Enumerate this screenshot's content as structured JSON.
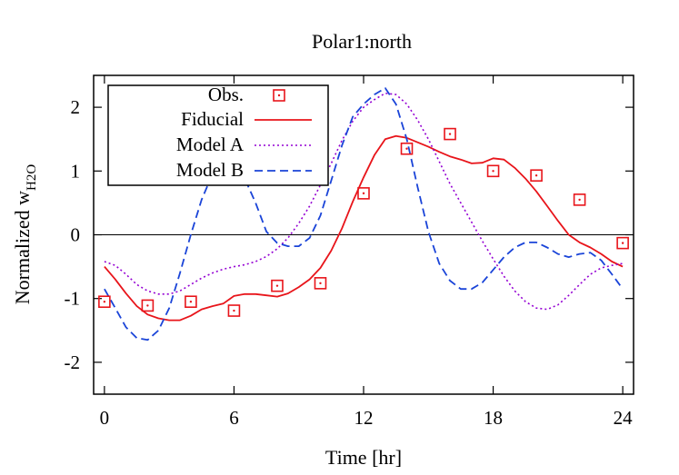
{
  "chart_data": {
    "type": "line",
    "title": "Polar1:north",
    "xlabel": "Time [hr]",
    "ylabel_main": "Normalized w",
    "ylabel_sub": "H2O",
    "xlim": [
      -0.5,
      24.5
    ],
    "ylim": [
      -2.5,
      2.5
    ],
    "xticks": [
      0,
      6,
      12,
      18,
      24
    ],
    "xtick_labels": [
      "0",
      "6",
      "12",
      "18",
      "24"
    ],
    "yticks": [
      -2,
      -1,
      0,
      1,
      2
    ],
    "ytick_labels": [
      "-2",
      "-1",
      "0",
      "1",
      "2"
    ],
    "zero_line": true,
    "grid": false,
    "legend_position": "top-left",
    "series": [
      {
        "name": "Obs.",
        "kind": "points",
        "marker": "boxed-dot",
        "color": "#e8141a",
        "x": [
          0,
          2,
          4,
          6,
          8,
          10,
          12,
          14,
          16,
          18,
          20,
          22,
          24
        ],
        "y": [
          -1.05,
          -1.11,
          -1.05,
          -1.19,
          -0.8,
          -0.76,
          0.65,
          1.35,
          1.58,
          1.0,
          0.93,
          0.55,
          -0.13
        ]
      },
      {
        "name": "Fiducial",
        "kind": "line",
        "dash": "solid",
        "color": "#e8141a",
        "x": [
          0,
          0.5,
          1,
          1.5,
          2,
          2.5,
          3,
          3.5,
          4,
          4.5,
          5,
          5.5,
          6,
          6.5,
          7,
          7.5,
          8,
          8.5,
          9,
          9.5,
          10,
          10.5,
          11,
          11.5,
          12,
          12.5,
          13,
          13.5,
          14,
          14.5,
          15,
          15.5,
          16,
          16.5,
          17,
          17.5,
          18,
          18.5,
          19,
          19.5,
          20,
          20.5,
          21,
          21.5,
          22,
          22.5,
          23,
          23.5,
          24
        ],
        "y": [
          -0.5,
          -0.7,
          -0.92,
          -1.12,
          -1.25,
          -1.31,
          -1.34,
          -1.34,
          -1.27,
          -1.17,
          -1.12,
          -1.08,
          -0.96,
          -0.93,
          -0.93,
          -0.95,
          -0.97,
          -0.92,
          -0.82,
          -0.7,
          -0.52,
          -0.25,
          0.1,
          0.52,
          0.9,
          1.25,
          1.5,
          1.55,
          1.52,
          1.45,
          1.38,
          1.3,
          1.23,
          1.18,
          1.12,
          1.13,
          1.2,
          1.18,
          1.05,
          0.88,
          0.68,
          0.45,
          0.22,
          0.0,
          -0.12,
          -0.2,
          -0.3,
          -0.42,
          -0.5
        ]
      },
      {
        "name": "Model A",
        "kind": "line",
        "dash": "dotted",
        "color": "#9400d3",
        "x": [
          0,
          0.5,
          1,
          1.5,
          2,
          2.5,
          3,
          3.5,
          4,
          4.5,
          5,
          5.5,
          6,
          6.5,
          7,
          7.5,
          8,
          8.5,
          9,
          9.5,
          10,
          10.5,
          11,
          11.5,
          12,
          12.5,
          13,
          13.5,
          14,
          14.5,
          15,
          15.5,
          16,
          16.5,
          17,
          17.5,
          18,
          18.5,
          19,
          19.5,
          20,
          20.5,
          21,
          21.5,
          22,
          22.5,
          23,
          23.5,
          24
        ],
        "y": [
          -0.42,
          -0.48,
          -0.62,
          -0.78,
          -0.88,
          -0.93,
          -0.93,
          -0.88,
          -0.78,
          -0.68,
          -0.6,
          -0.54,
          -0.5,
          -0.47,
          -0.42,
          -0.34,
          -0.22,
          -0.05,
          0.18,
          0.45,
          0.78,
          1.12,
          1.48,
          1.78,
          2.0,
          2.12,
          2.22,
          2.2,
          2.05,
          1.8,
          1.5,
          1.15,
          0.8,
          0.5,
          0.2,
          -0.1,
          -0.38,
          -0.65,
          -0.88,
          -1.05,
          -1.15,
          -1.17,
          -1.1,
          -0.95,
          -0.78,
          -0.62,
          -0.52,
          -0.48,
          -0.45
        ]
      },
      {
        "name": "Model B",
        "kind": "line",
        "dash": "dashed",
        "color": "#1a44d8",
        "x": [
          0,
          0.5,
          1,
          1.5,
          2,
          2.5,
          3,
          3.5,
          4,
          4.5,
          5,
          5.5,
          6,
          6.5,
          7,
          7.5,
          8,
          8.5,
          9,
          9.5,
          10,
          10.5,
          11,
          11.5,
          12,
          12.5,
          13,
          13.5,
          14,
          14.5,
          15,
          15.5,
          16,
          16.5,
          17,
          17.5,
          18,
          18.5,
          19,
          19.5,
          20,
          20.5,
          21,
          21.5,
          22,
          22.5,
          23,
          23.5,
          24
        ],
        "y": [
          -0.85,
          -1.15,
          -1.45,
          -1.62,
          -1.65,
          -1.5,
          -1.15,
          -0.6,
          0.0,
          0.55,
          0.95,
          1.08,
          1.08,
          0.88,
          0.5,
          0.05,
          -0.13,
          -0.18,
          -0.18,
          -0.05,
          0.3,
          0.85,
          1.4,
          1.85,
          2.05,
          2.2,
          2.3,
          2.05,
          1.5,
          0.75,
          0.05,
          -0.45,
          -0.72,
          -0.85,
          -0.85,
          -0.75,
          -0.55,
          -0.35,
          -0.2,
          -0.12,
          -0.12,
          -0.2,
          -0.3,
          -0.35,
          -0.3,
          -0.28,
          -0.4,
          -0.62,
          -0.85
        ]
      }
    ]
  }
}
